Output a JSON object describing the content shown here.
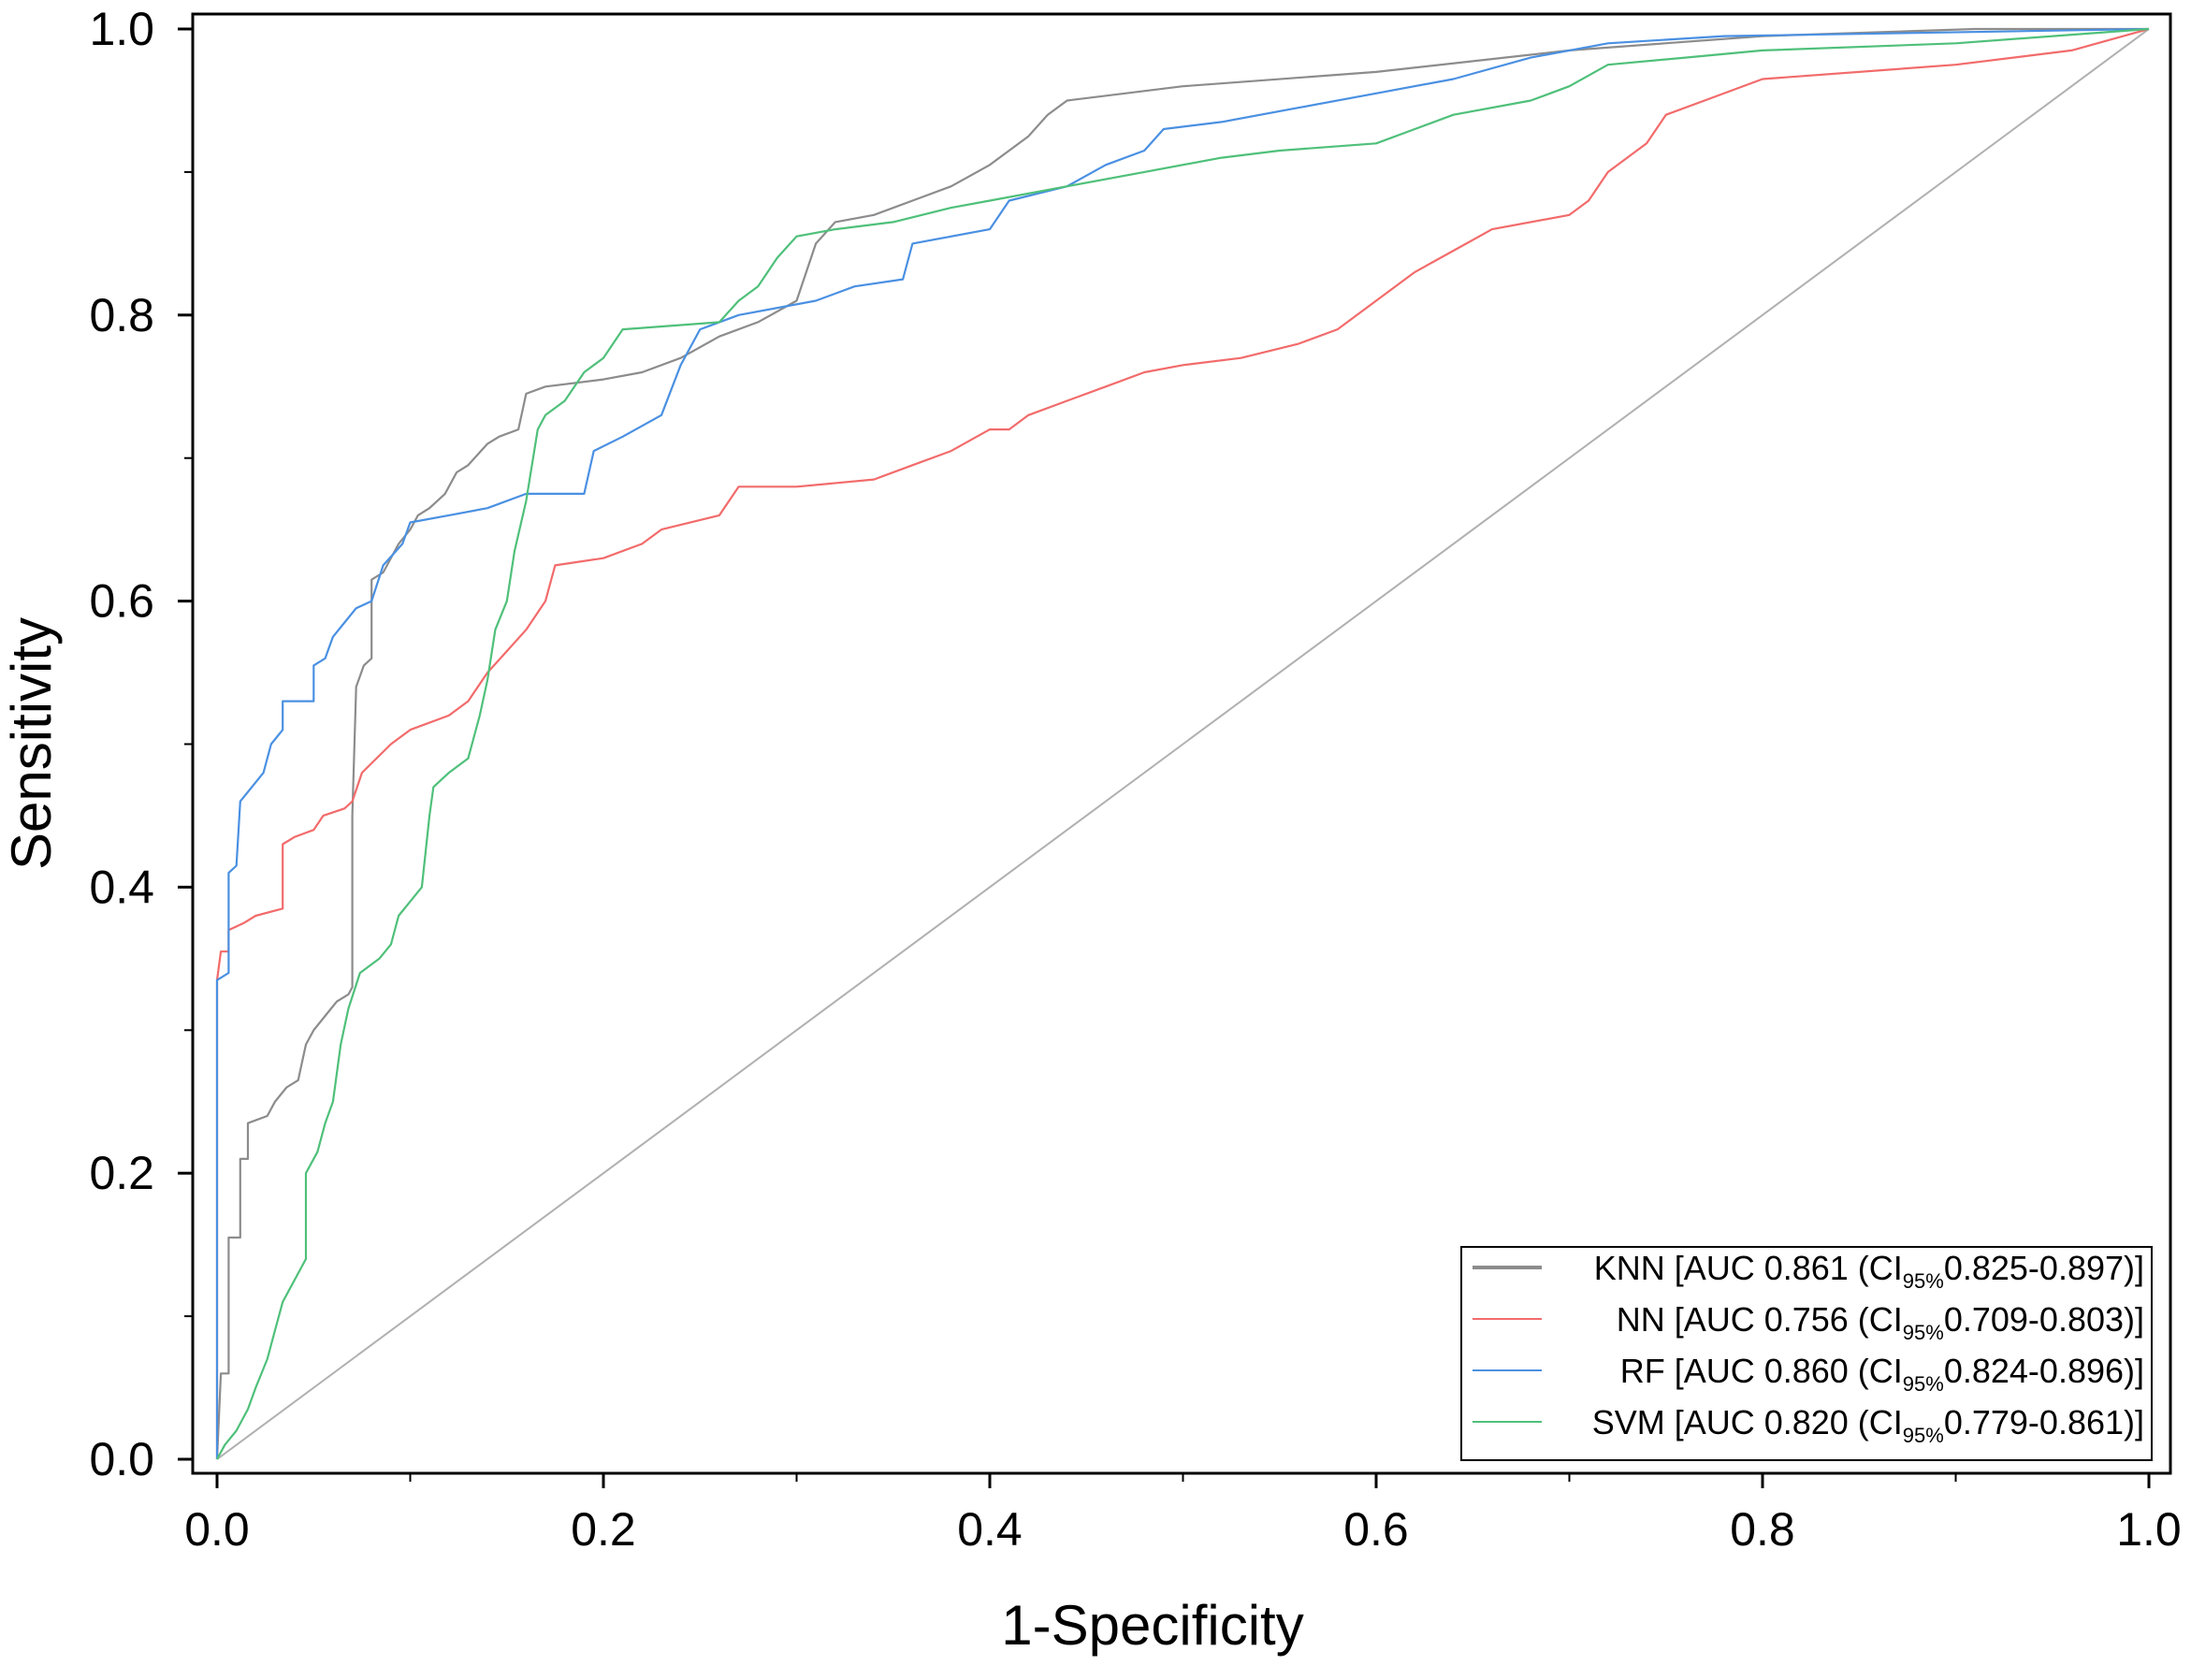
{
  "chart_data": {
    "type": "line",
    "title": "",
    "xlabel": "1-Specificity",
    "ylabel": "Sensitivity",
    "xlim": [
      0,
      1
    ],
    "ylim": [
      0,
      1
    ],
    "xticks": [
      "0.0",
      "0.2",
      "0.4",
      "0.6",
      "0.8",
      "1.0"
    ],
    "yticks": [
      "0.0",
      "0.2",
      "0.4",
      "0.6",
      "0.8",
      "1.0"
    ],
    "grid": false,
    "legend_position": "bottom-right",
    "reference_line": {
      "name": "chance",
      "color": "#b0b0b0",
      "x": [
        0,
        1
      ],
      "y": [
        0,
        1
      ]
    },
    "series": [
      {
        "name": "KNN",
        "label_main": "KNN [AUC 0.861 (CI",
        "label_sub": "95%",
        "label_tail": "0.825-0.897)]",
        "color": "#8c8c8c",
        "points": [
          [
            0,
            0
          ],
          [
            0.002,
            0.06
          ],
          [
            0.006,
            0.06
          ],
          [
            0.006,
            0.155
          ],
          [
            0.012,
            0.155
          ],
          [
            0.012,
            0.21
          ],
          [
            0.016,
            0.21
          ],
          [
            0.016,
            0.235
          ],
          [
            0.026,
            0.24
          ],
          [
            0.03,
            0.25
          ],
          [
            0.036,
            0.26
          ],
          [
            0.042,
            0.265
          ],
          [
            0.046,
            0.29
          ],
          [
            0.05,
            0.3
          ],
          [
            0.056,
            0.31
          ],
          [
            0.062,
            0.32
          ],
          [
            0.068,
            0.325
          ],
          [
            0.07,
            0.33
          ],
          [
            0.07,
            0.45
          ],
          [
            0.072,
            0.54
          ],
          [
            0.076,
            0.555
          ],
          [
            0.08,
            0.56
          ],
          [
            0.08,
            0.615
          ],
          [
            0.086,
            0.62
          ],
          [
            0.094,
            0.64
          ],
          [
            0.1,
            0.65
          ],
          [
            0.104,
            0.66
          ],
          [
            0.11,
            0.665
          ],
          [
            0.118,
            0.675
          ],
          [
            0.124,
            0.69
          ],
          [
            0.13,
            0.695
          ],
          [
            0.14,
            0.71
          ],
          [
            0.146,
            0.715
          ],
          [
            0.156,
            0.72
          ],
          [
            0.16,
            0.745
          ],
          [
            0.17,
            0.75
          ],
          [
            0.2,
            0.755
          ],
          [
            0.22,
            0.76
          ],
          [
            0.24,
            0.77
          ],
          [
            0.26,
            0.785
          ],
          [
            0.28,
            0.795
          ],
          [
            0.3,
            0.81
          ],
          [
            0.31,
            0.85
          ],
          [
            0.32,
            0.865
          ],
          [
            0.34,
            0.87
          ],
          [
            0.36,
            0.88
          ],
          [
            0.38,
            0.89
          ],
          [
            0.4,
            0.905
          ],
          [
            0.42,
            0.925
          ],
          [
            0.43,
            0.94
          ],
          [
            0.44,
            0.95
          ],
          [
            0.5,
            0.96
          ],
          [
            0.6,
            0.97
          ],
          [
            0.7,
            0.985
          ],
          [
            0.8,
            0.995
          ],
          [
            0.91,
            1
          ],
          [
            1,
            1
          ]
        ]
      },
      {
        "name": "NN",
        "label_main": "NN [AUC 0.756 (CI",
        "label_sub": "95%",
        "label_tail": "0.709-0.803)]",
        "color": "#f26b6b",
        "points": [
          [
            0,
            0
          ],
          [
            0,
            0.335
          ],
          [
            0.002,
            0.355
          ],
          [
            0.006,
            0.355
          ],
          [
            0.006,
            0.37
          ],
          [
            0.014,
            0.375
          ],
          [
            0.02,
            0.38
          ],
          [
            0.034,
            0.385
          ],
          [
            0.034,
            0.43
          ],
          [
            0.04,
            0.435
          ],
          [
            0.05,
            0.44
          ],
          [
            0.055,
            0.45
          ],
          [
            0.066,
            0.455
          ],
          [
            0.07,
            0.46
          ],
          [
            0.075,
            0.48
          ],
          [
            0.09,
            0.5
          ],
          [
            0.1,
            0.51
          ],
          [
            0.12,
            0.52
          ],
          [
            0.13,
            0.53
          ],
          [
            0.14,
            0.55
          ],
          [
            0.15,
            0.565
          ],
          [
            0.16,
            0.58
          ],
          [
            0.17,
            0.6
          ],
          [
            0.175,
            0.625
          ],
          [
            0.2,
            0.63
          ],
          [
            0.22,
            0.64
          ],
          [
            0.23,
            0.65
          ],
          [
            0.26,
            0.66
          ],
          [
            0.27,
            0.68
          ],
          [
            0.3,
            0.68
          ],
          [
            0.34,
            0.685
          ],
          [
            0.36,
            0.695
          ],
          [
            0.38,
            0.705
          ],
          [
            0.4,
            0.72
          ],
          [
            0.41,
            0.72
          ],
          [
            0.42,
            0.73
          ],
          [
            0.44,
            0.74
          ],
          [
            0.46,
            0.75
          ],
          [
            0.48,
            0.76
          ],
          [
            0.5,
            0.765
          ],
          [
            0.53,
            0.77
          ],
          [
            0.56,
            0.78
          ],
          [
            0.58,
            0.79
          ],
          [
            0.6,
            0.81
          ],
          [
            0.62,
            0.83
          ],
          [
            0.64,
            0.845
          ],
          [
            0.66,
            0.86
          ],
          [
            0.7,
            0.87
          ],
          [
            0.71,
            0.88
          ],
          [
            0.72,
            0.9
          ],
          [
            0.74,
            0.92
          ],
          [
            0.75,
            0.94
          ],
          [
            0.77,
            0.95
          ],
          [
            0.8,
            0.965
          ],
          [
            0.9,
            0.975
          ],
          [
            0.96,
            0.985
          ],
          [
            1,
            1
          ]
        ]
      },
      {
        "name": "RF",
        "label_main": "RF [AUC 0.860 (CI",
        "label_sub": "95%",
        "label_tail": "0.824-0.896)]",
        "color": "#4a90e2",
        "points": [
          [
            0,
            0
          ],
          [
            0,
            0.335
          ],
          [
            0.006,
            0.34
          ],
          [
            0.006,
            0.41
          ],
          [
            0.01,
            0.415
          ],
          [
            0.012,
            0.46
          ],
          [
            0.018,
            0.47
          ],
          [
            0.024,
            0.48
          ],
          [
            0.028,
            0.5
          ],
          [
            0.034,
            0.51
          ],
          [
            0.034,
            0.53
          ],
          [
            0.05,
            0.53
          ],
          [
            0.05,
            0.555
          ],
          [
            0.056,
            0.56
          ],
          [
            0.06,
            0.575
          ],
          [
            0.066,
            0.585
          ],
          [
            0.072,
            0.595
          ],
          [
            0.08,
            0.6
          ],
          [
            0.086,
            0.625
          ],
          [
            0.096,
            0.64
          ],
          [
            0.1,
            0.655
          ],
          [
            0.12,
            0.66
          ],
          [
            0.14,
            0.665
          ],
          [
            0.16,
            0.675
          ],
          [
            0.19,
            0.675
          ],
          [
            0.195,
            0.705
          ],
          [
            0.21,
            0.715
          ],
          [
            0.23,
            0.73
          ],
          [
            0.24,
            0.765
          ],
          [
            0.25,
            0.79
          ],
          [
            0.27,
            0.8
          ],
          [
            0.31,
            0.81
          ],
          [
            0.33,
            0.82
          ],
          [
            0.355,
            0.825
          ],
          [
            0.36,
            0.85
          ],
          [
            0.4,
            0.86
          ],
          [
            0.41,
            0.88
          ],
          [
            0.44,
            0.89
          ],
          [
            0.46,
            0.905
          ],
          [
            0.48,
            0.915
          ],
          [
            0.49,
            0.93
          ],
          [
            0.52,
            0.935
          ],
          [
            0.56,
            0.945
          ],
          [
            0.6,
            0.955
          ],
          [
            0.64,
            0.965
          ],
          [
            0.68,
            0.98
          ],
          [
            0.72,
            0.99
          ],
          [
            0.78,
            0.995
          ],
          [
            1,
            1
          ]
        ]
      },
      {
        "name": "SVM",
        "label_main": "SVM [AUC 0.820 (CI",
        "label_sub": "95%",
        "label_tail": "0.779-0.861)]",
        "color": "#4fc07a",
        "points": [
          [
            0,
            0
          ],
          [
            0.004,
            0.01
          ],
          [
            0.01,
            0.02
          ],
          [
            0.016,
            0.035
          ],
          [
            0.02,
            0.05
          ],
          [
            0.026,
            0.07
          ],
          [
            0.03,
            0.09
          ],
          [
            0.034,
            0.11
          ],
          [
            0.04,
            0.125
          ],
          [
            0.046,
            0.14
          ],
          [
            0.046,
            0.2
          ],
          [
            0.052,
            0.215
          ],
          [
            0.056,
            0.235
          ],
          [
            0.06,
            0.25
          ],
          [
            0.064,
            0.29
          ],
          [
            0.068,
            0.315
          ],
          [
            0.074,
            0.34
          ],
          [
            0.084,
            0.35
          ],
          [
            0.09,
            0.36
          ],
          [
            0.094,
            0.38
          ],
          [
            0.1,
            0.39
          ],
          [
            0.106,
            0.4
          ],
          [
            0.11,
            0.45
          ],
          [
            0.112,
            0.47
          ],
          [
            0.12,
            0.48
          ],
          [
            0.13,
            0.49
          ],
          [
            0.136,
            0.52
          ],
          [
            0.14,
            0.545
          ],
          [
            0.144,
            0.58
          ],
          [
            0.15,
            0.6
          ],
          [
            0.154,
            0.635
          ],
          [
            0.16,
            0.67
          ],
          [
            0.166,
            0.72
          ],
          [
            0.17,
            0.73
          ],
          [
            0.18,
            0.74
          ],
          [
            0.19,
            0.76
          ],
          [
            0.2,
            0.77
          ],
          [
            0.21,
            0.79
          ],
          [
            0.26,
            0.795
          ],
          [
            0.27,
            0.81
          ],
          [
            0.28,
            0.82
          ],
          [
            0.29,
            0.84
          ],
          [
            0.3,
            0.855
          ],
          [
            0.32,
            0.86
          ],
          [
            0.35,
            0.865
          ],
          [
            0.38,
            0.875
          ],
          [
            0.4,
            0.88
          ],
          [
            0.44,
            0.89
          ],
          [
            0.48,
            0.9
          ],
          [
            0.52,
            0.91
          ],
          [
            0.55,
            0.915
          ],
          [
            0.6,
            0.92
          ],
          [
            0.62,
            0.93
          ],
          [
            0.64,
            0.94
          ],
          [
            0.68,
            0.95
          ],
          [
            0.7,
            0.96
          ],
          [
            0.72,
            0.975
          ],
          [
            0.76,
            0.98
          ],
          [
            0.8,
            0.985
          ],
          [
            0.9,
            0.99
          ],
          [
            1,
            1
          ]
        ]
      }
    ]
  }
}
